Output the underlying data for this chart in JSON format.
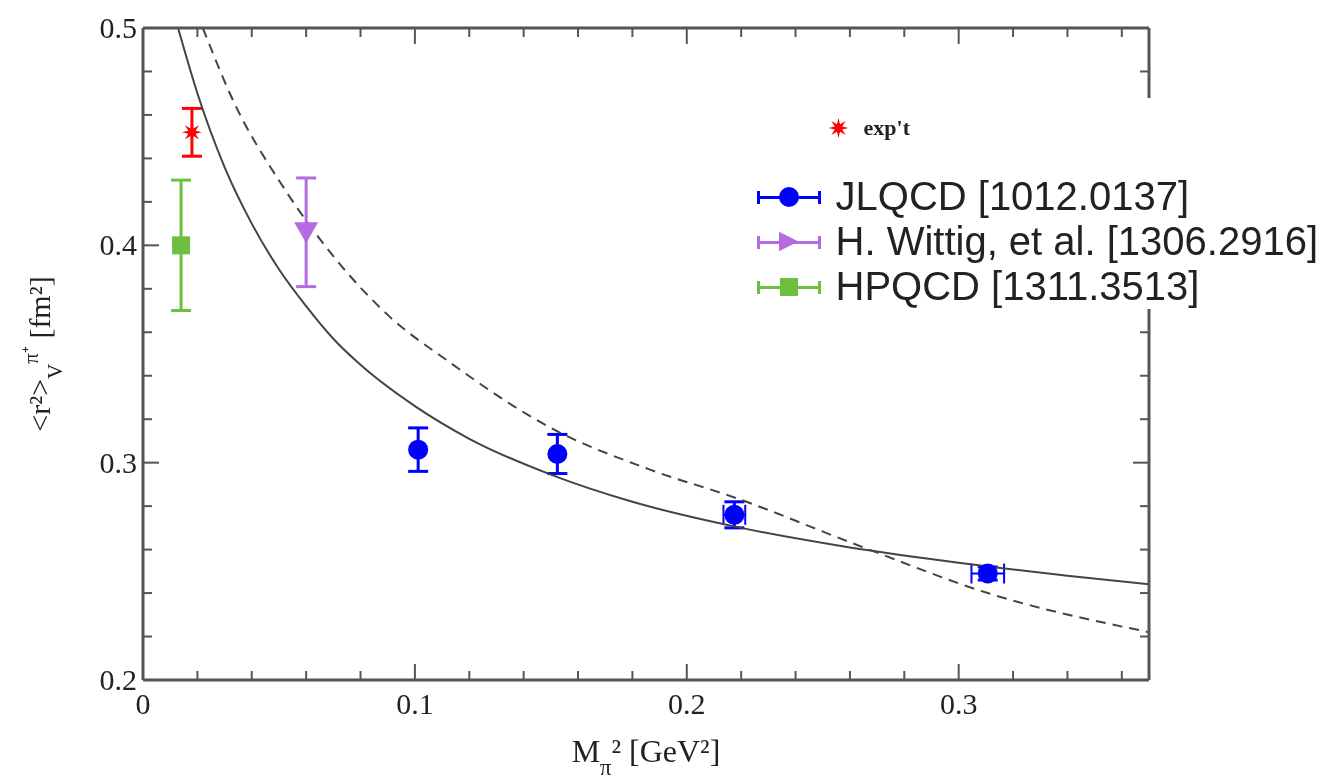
{
  "chart_data": {
    "type": "scatter",
    "xlabel": "M$_{π}$² [GeV²]",
    "ylabel": "<r²>$_{V}$$^{π⁺}$ [fm²]",
    "xlim": [
      0,
      0.37
    ],
    "ylim": [
      0.2,
      0.5
    ],
    "xticks": [
      0,
      {
        "value": 0.02,
        "label": null
      },
      {
        "value": 0.04,
        "label": null
      },
      {
        "value": 0.06,
        "label": null
      },
      {
        "value": 0.08,
        "label": null
      },
      {
        "value": 0.1,
        "label": "0.1"
      },
      {
        "value": 0.12,
        "label": null
      },
      {
        "value": 0.14,
        "label": null
      },
      {
        "value": 0.16,
        "label": null
      },
      {
        "value": 0.18,
        "label": null
      },
      {
        "value": 0.2,
        "label": "0.2"
      },
      {
        "value": 0.22,
        "label": null
      },
      {
        "value": 0.24,
        "label": null
      },
      {
        "value": 0.26,
        "label": null
      },
      {
        "value": 0.28,
        "label": null
      },
      {
        "value": 0.3,
        "label": "0.3"
      },
      {
        "value": 0.32,
        "label": null
      },
      {
        "value": 0.34,
        "label": null
      },
      {
        "value": 0.36,
        "label": null
      }
    ],
    "yticks": [
      0.2,
      {
        "value": 0.22,
        "label": null
      },
      {
        "value": 0.24,
        "label": null
      },
      {
        "value": 0.26,
        "label": null
      },
      {
        "value": 0.28,
        "label": null
      },
      0.3,
      {
        "value": 0.32,
        "label": null
      },
      {
        "value": 0.34,
        "label": null
      },
      {
        "value": 0.36,
        "label": null
      },
      {
        "value": 0.38,
        "label": null
      },
      0.4,
      {
        "value": 0.42,
        "label": null
      },
      {
        "value": 0.44,
        "label": null
      },
      {
        "value": 0.46,
        "label": null
      },
      {
        "value": 0.48,
        "label": null
      },
      0.5
    ],
    "legend": "top right",
    "series": [
      {
        "name": "exp't",
        "color": "#ff0000",
        "marker": "star",
        "x": [
          0.018
        ],
        "values": [
          0.452
        ],
        "errors": [
          0.011
        ]
      },
      {
        "name": "JLQCD [1012.0137]",
        "color": "#0000ff",
        "marker": "circle",
        "x": [
          0.1012,
          0.1524,
          0.2175,
          0.3107
        ],
        "values": [
          0.306,
          0.304,
          0.276,
          0.249
        ],
        "errors": [
          0.01,
          0.009,
          0.006,
          0.003
        ],
        "xerrors": [
          null,
          null,
          0.004,
          0.006
        ]
      },
      {
        "name": "H. Wittig, et al. [1306.2916]",
        "color": "#b36ae2",
        "marker": "triangle",
        "x": [
          0.06
        ],
        "values": [
          0.406
        ],
        "errors": [
          0.025
        ]
      },
      {
        "name": "HPQCD [1311.3513]",
        "color": "#6fbf3f",
        "marker": "square",
        "x": [
          0.014
        ],
        "values": [
          0.4
        ],
        "errors": [
          0.03
        ]
      },
      {
        "type": "line",
        "color": "#444444",
        "line_style": "solid",
        "x": [
          0.0129,
          0.02,
          0.03,
          0.04,
          0.05,
          0.06,
          0.07,
          0.08,
          0.1,
          0.12,
          0.15,
          0.18,
          0.22,
          0.26,
          0.3,
          0.34,
          0.37
        ],
        "values": [
          0.5,
          0.47,
          0.436,
          0.41,
          0.389,
          0.372,
          0.357,
          0.345,
          0.326,
          0.311,
          0.2945,
          0.282,
          0.27,
          0.261,
          0.254,
          0.248,
          0.244
        ]
      },
      {
        "type": "line",
        "color": "#444444",
        "line_style": "dashed",
        "x": [
          0.022,
          0.033,
          0.0515,
          0.07,
          0.09,
          0.113,
          0.15,
          0.186,
          0.2175,
          0.265,
          0.3107,
          0.37
        ],
        "values": [
          0.5,
          0.467,
          0.427,
          0.395,
          0.368,
          0.346,
          0.316,
          0.297,
          0.284,
          0.261,
          0.24,
          0.222
        ]
      }
    ]
  }
}
